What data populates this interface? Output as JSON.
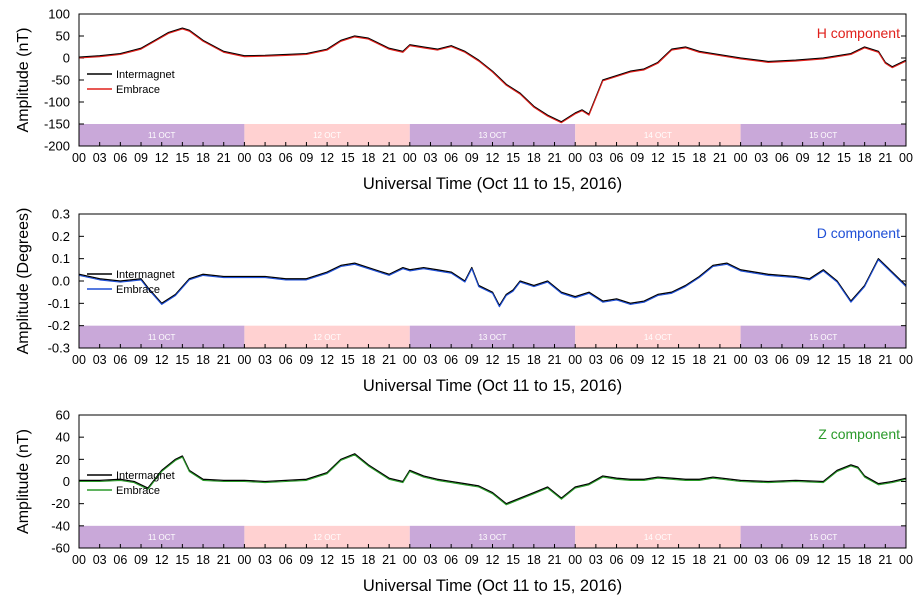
{
  "colors": {
    "intermagnet": "#000000",
    "h_embrace": "#e0201b",
    "d_embrace": "#1f4fd6",
    "z_embrace": "#2a9a2a",
    "band_purple": "#c9a8d9",
    "band_pink": "#ffd1d1",
    "h_title": "#e0201b",
    "d_title": "#1f4fd6",
    "z_title": "#2a9a2a"
  },
  "chart_data": [
    {
      "type": "line",
      "title": "H component",
      "xlabel": "Universal Time (Oct 11 to 15, 2016)",
      "ylabel": "Amplitude (nT)",
      "xlim": [
        0,
        120
      ],
      "ylim": [
        -200,
        100
      ],
      "y_ticks": [
        100,
        50,
        0,
        -50,
        -100,
        -150,
        -200
      ],
      "x_tick_labels": [
        "00",
        "03",
        "06",
        "09",
        "12",
        "15",
        "18",
        "21",
        "00",
        "03",
        "06",
        "09",
        "12",
        "15",
        "18",
        "21",
        "00",
        "03",
        "06",
        "09",
        "12",
        "15",
        "18",
        "21",
        "00",
        "03",
        "06",
        "09",
        "12",
        "15",
        "18",
        "21",
        "00",
        "03",
        "06",
        "09",
        "12",
        "15",
        "18",
        "21",
        "00"
      ],
      "day_bands": {
        "labels": [
          "11 OCT",
          "12 OCT",
          "13 OCT",
          "14 OCT",
          "15 OCT"
        ],
        "range": [
          -200,
          -150
        ]
      },
      "legend": {
        "entries": [
          "Intermagnet",
          "Embrace"
        ],
        "position": "upper-left"
      },
      "x": [
        0,
        3,
        6,
        9,
        11,
        13,
        15,
        16,
        18,
        21,
        24,
        27,
        30,
        33,
        36,
        38,
        40,
        42,
        45,
        47,
        48,
        50,
        52,
        54,
        56,
        58,
        60,
        62,
        64,
        66,
        68,
        70,
        71,
        72,
        73,
        74,
        76,
        78,
        80,
        82,
        84,
        86,
        88,
        90,
        92,
        96,
        100,
        104,
        108,
        112,
        114,
        116,
        117,
        118,
        120
      ],
      "series": [
        {
          "name": "Intermagnet",
          "values": [
            2,
            5,
            10,
            22,
            40,
            58,
            68,
            63,
            40,
            15,
            5,
            6,
            8,
            10,
            20,
            40,
            50,
            45,
            22,
            15,
            30,
            25,
            20,
            28,
            15,
            -5,
            -30,
            -60,
            -80,
            -110,
            -130,
            -145,
            -135,
            -125,
            -118,
            -128,
            -50,
            -40,
            -30,
            -25,
            -10,
            20,
            25,
            15,
            10,
            0,
            -8,
            -5,
            0,
            10,
            25,
            15,
            -10,
            -20,
            -5
          ]
        },
        {
          "name": "Embrace",
          "values": [
            0,
            3,
            8,
            20,
            38,
            56,
            66,
            61,
            38,
            13,
            3,
            4,
            6,
            8,
            18,
            38,
            48,
            43,
            20,
            13,
            28,
            23,
            18,
            26,
            13,
            -7,
            -32,
            -62,
            -82,
            -112,
            -132,
            -147,
            -137,
            -127,
            -120,
            -130,
            -52,
            -42,
            -32,
            -27,
            -12,
            18,
            23,
            13,
            8,
            -2,
            -10,
            -7,
            -2,
            8,
            23,
            13,
            -12,
            -22,
            -7
          ]
        }
      ]
    },
    {
      "type": "line",
      "title": "D component",
      "xlabel": "Universal Time (Oct 11 to 15, 2016)",
      "ylabel": "Amplitude (Degrees)",
      "xlim": [
        0,
        120
      ],
      "ylim": [
        -0.3,
        0.3
      ],
      "y_ticks": [
        "0.3",
        "0.2",
        "0.1",
        "0.0",
        "-0.1",
        "-0.2",
        "-0.3"
      ],
      "x_tick_labels": [
        "00",
        "03",
        "06",
        "09",
        "12",
        "15",
        "18",
        "21",
        "00",
        "03",
        "06",
        "09",
        "12",
        "15",
        "18",
        "21",
        "00",
        "03",
        "06",
        "09",
        "12",
        "15",
        "18",
        "21",
        "00",
        "03",
        "06",
        "09",
        "12",
        "15",
        "18",
        "21",
        "00",
        "03",
        "06",
        "09",
        "12",
        "15",
        "18",
        "21",
        "00"
      ],
      "day_bands": {
        "labels": [
          "11 OCT",
          "12 OCT",
          "13 OCT",
          "14 OCT",
          "15 OCT"
        ],
        "range": [
          -0.3,
          -0.2
        ]
      },
      "legend": {
        "entries": [
          "Intermagnet",
          "Embrace"
        ],
        "position": "upper-left"
      },
      "x": [
        0,
        3,
        6,
        9,
        10,
        12,
        14,
        16,
        18,
        21,
        24,
        27,
        30,
        33,
        36,
        38,
        40,
        42,
        45,
        47,
        48,
        50,
        52,
        54,
        56,
        57,
        58,
        60,
        61,
        62,
        63,
        64,
        66,
        68,
        70,
        72,
        74,
        76,
        78,
        80,
        82,
        84,
        86,
        88,
        90,
        92,
        94,
        96,
        100,
        104,
        106,
        108,
        110,
        112,
        114,
        116,
        118,
        120
      ],
      "series": [
        {
          "name": "Intermagnet",
          "values": [
            0.03,
            0.01,
            0.0,
            0.01,
            -0.03,
            -0.1,
            -0.06,
            0.01,
            0.03,
            0.02,
            0.02,
            0.02,
            0.01,
            0.01,
            0.04,
            0.07,
            0.08,
            0.06,
            0.03,
            0.06,
            0.05,
            0.06,
            0.05,
            0.04,
            0.0,
            0.06,
            -0.02,
            -0.05,
            -0.11,
            -0.06,
            -0.04,
            0.0,
            -0.02,
            0.0,
            -0.05,
            -0.07,
            -0.05,
            -0.09,
            -0.08,
            -0.1,
            -0.09,
            -0.06,
            -0.05,
            -0.02,
            0.02,
            0.07,
            0.08,
            0.05,
            0.03,
            0.02,
            0.01,
            0.05,
            0.0,
            -0.09,
            -0.02,
            0.1,
            0.04,
            -0.02
          ]
        },
        {
          "name": "Embrace",
          "values": [
            0.025,
            0.005,
            -0.005,
            0.005,
            -0.035,
            -0.105,
            -0.065,
            0.005,
            0.025,
            0.015,
            0.015,
            0.015,
            0.005,
            0.005,
            0.035,
            0.065,
            0.075,
            0.055,
            0.025,
            0.055,
            0.045,
            0.055,
            0.045,
            0.035,
            -0.005,
            0.055,
            -0.025,
            -0.055,
            -0.115,
            -0.065,
            -0.045,
            -0.005,
            -0.025,
            -0.005,
            -0.055,
            -0.075,
            -0.055,
            -0.095,
            -0.085,
            -0.105,
            -0.095,
            -0.065,
            -0.055,
            -0.025,
            0.015,
            0.065,
            0.075,
            0.045,
            0.025,
            0.015,
            0.005,
            0.045,
            -0.005,
            -0.095,
            -0.025,
            0.095,
            0.035,
            -0.025
          ]
        }
      ]
    },
    {
      "type": "line",
      "title": "Z component",
      "xlabel": "Universal Time (Oct 11 to 15, 2016)",
      "ylabel": "Amplitude (nT)",
      "xlim": [
        0,
        120
      ],
      "ylim": [
        -60,
        60
      ],
      "y_ticks": [
        60,
        40,
        20,
        0,
        -20,
        -40,
        -60
      ],
      "x_tick_labels": [
        "00",
        "03",
        "06",
        "09",
        "12",
        "15",
        "18",
        "21",
        "00",
        "03",
        "06",
        "09",
        "12",
        "15",
        "18",
        "21",
        "00",
        "03",
        "06",
        "09",
        "12",
        "15",
        "18",
        "21",
        "00",
        "03",
        "06",
        "09",
        "12",
        "15",
        "18",
        "21",
        "00",
        "03",
        "06",
        "09",
        "12",
        "15",
        "18",
        "21",
        "00"
      ],
      "day_bands": {
        "labels": [
          "11 OCT",
          "12 OCT",
          "13 OCT",
          "14 OCT",
          "15 OCT"
        ],
        "range": [
          -60,
          -40
        ]
      },
      "legend": {
        "entries": [
          "Intermagnet",
          "Embrace"
        ],
        "position": "upper-left"
      },
      "x": [
        0,
        3,
        6,
        8,
        10,
        12,
        14,
        15,
        16,
        18,
        21,
        24,
        27,
        30,
        33,
        36,
        38,
        40,
        42,
        45,
        47,
        48,
        50,
        52,
        54,
        56,
        58,
        60,
        62,
        64,
        66,
        68,
        70,
        72,
        74,
        76,
        78,
        80,
        82,
        84,
        86,
        88,
        90,
        92,
        96,
        100,
        104,
        108,
        110,
        112,
        113,
        114,
        116,
        118,
        120
      ],
      "series": [
        {
          "name": "Intermagnet",
          "values": [
            1,
            1,
            2,
            0,
            -6,
            10,
            20,
            23,
            10,
            2,
            1,
            1,
            0,
            1,
            2,
            8,
            20,
            25,
            15,
            3,
            0,
            10,
            5,
            2,
            0,
            -2,
            -4,
            -10,
            -20,
            -15,
            -10,
            -5,
            -15,
            -5,
            -2,
            5,
            3,
            2,
            2,
            4,
            3,
            2,
            2,
            4,
            1,
            0,
            1,
            0,
            10,
            15,
            13,
            5,
            -2,
            0,
            3
          ]
        },
        {
          "name": "Embrace",
          "values": [
            0,
            0,
            1,
            -1,
            -7,
            9,
            19,
            22,
            9,
            1,
            0,
            0,
            -1,
            0,
            1,
            7,
            19,
            24,
            14,
            2,
            -1,
            9,
            4,
            1,
            -1,
            -3,
            -5,
            -11,
            -21,
            -16,
            -11,
            -6,
            -16,
            -6,
            -3,
            4,
            2,
            1,
            1,
            3,
            2,
            1,
            1,
            3,
            0,
            -1,
            0,
            -1,
            9,
            14,
            12,
            4,
            -3,
            -1,
            2
          ]
        }
      ]
    }
  ]
}
